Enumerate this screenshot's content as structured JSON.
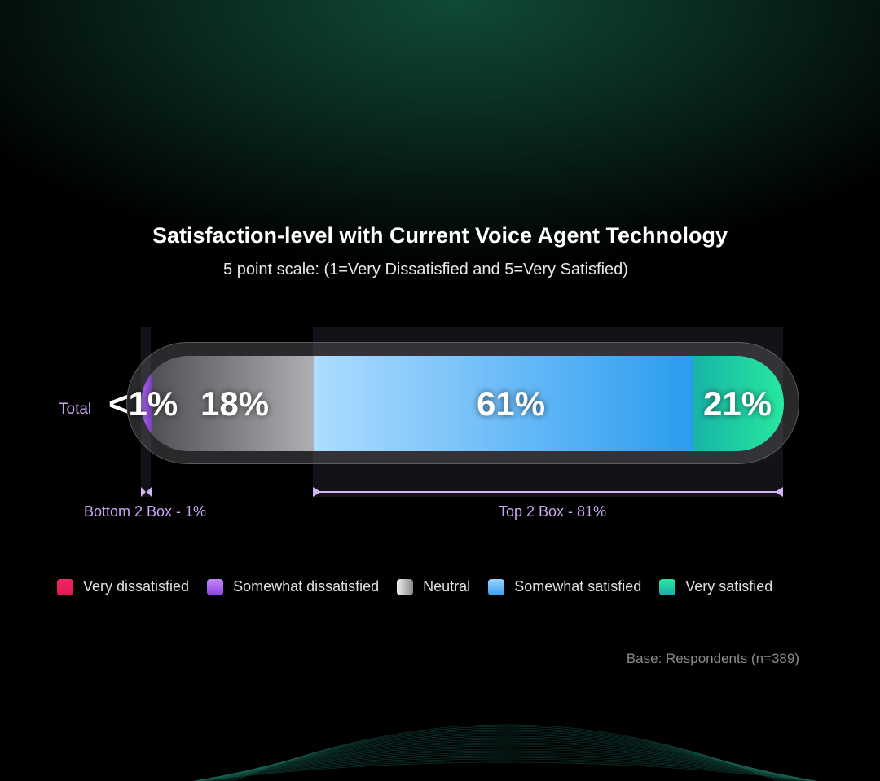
{
  "colors": {
    "very_dissatisfied": "#f0246a",
    "somewhat_dissatisfied": "#a05af0",
    "neutral": "#b8b8b8",
    "somewhat_satisfied": "#5ab4fa",
    "very_satisfied": "#1ed8a4"
  },
  "chart_data": {
    "type": "bar",
    "orientation": "horizontal-stacked",
    "title": "Satisfaction-level with Current Voice Agent Technology",
    "subtitle": "5 point scale: (1=Very Dissatisfied and 5=Very Satisfied)",
    "categories": [
      "Total"
    ],
    "series": [
      {
        "name": "Very dissatisfied",
        "values": [
          0
        ]
      },
      {
        "name": "Somewhat dissatisfied",
        "values": [
          1
        ],
        "label": "<1%"
      },
      {
        "name": "Neutral",
        "values": [
          18
        ],
        "label": "18%"
      },
      {
        "name": "Somewhat satisfied",
        "values": [
          61
        ],
        "label": "61%"
      },
      {
        "name": "Very satisfied",
        "values": [
          21
        ],
        "label": "21%"
      }
    ],
    "annotations": {
      "bottom2": "Bottom 2 Box - 1%",
      "top2": "Top 2 Box - 81%"
    },
    "legend": [
      "Very dissatisfied",
      "Somewhat dissatisfied",
      "Neutral",
      "Somewhat satisfied",
      "Very satisfied"
    ],
    "legend_position": "bottom",
    "note": "Base: Respondents (n=389)"
  }
}
